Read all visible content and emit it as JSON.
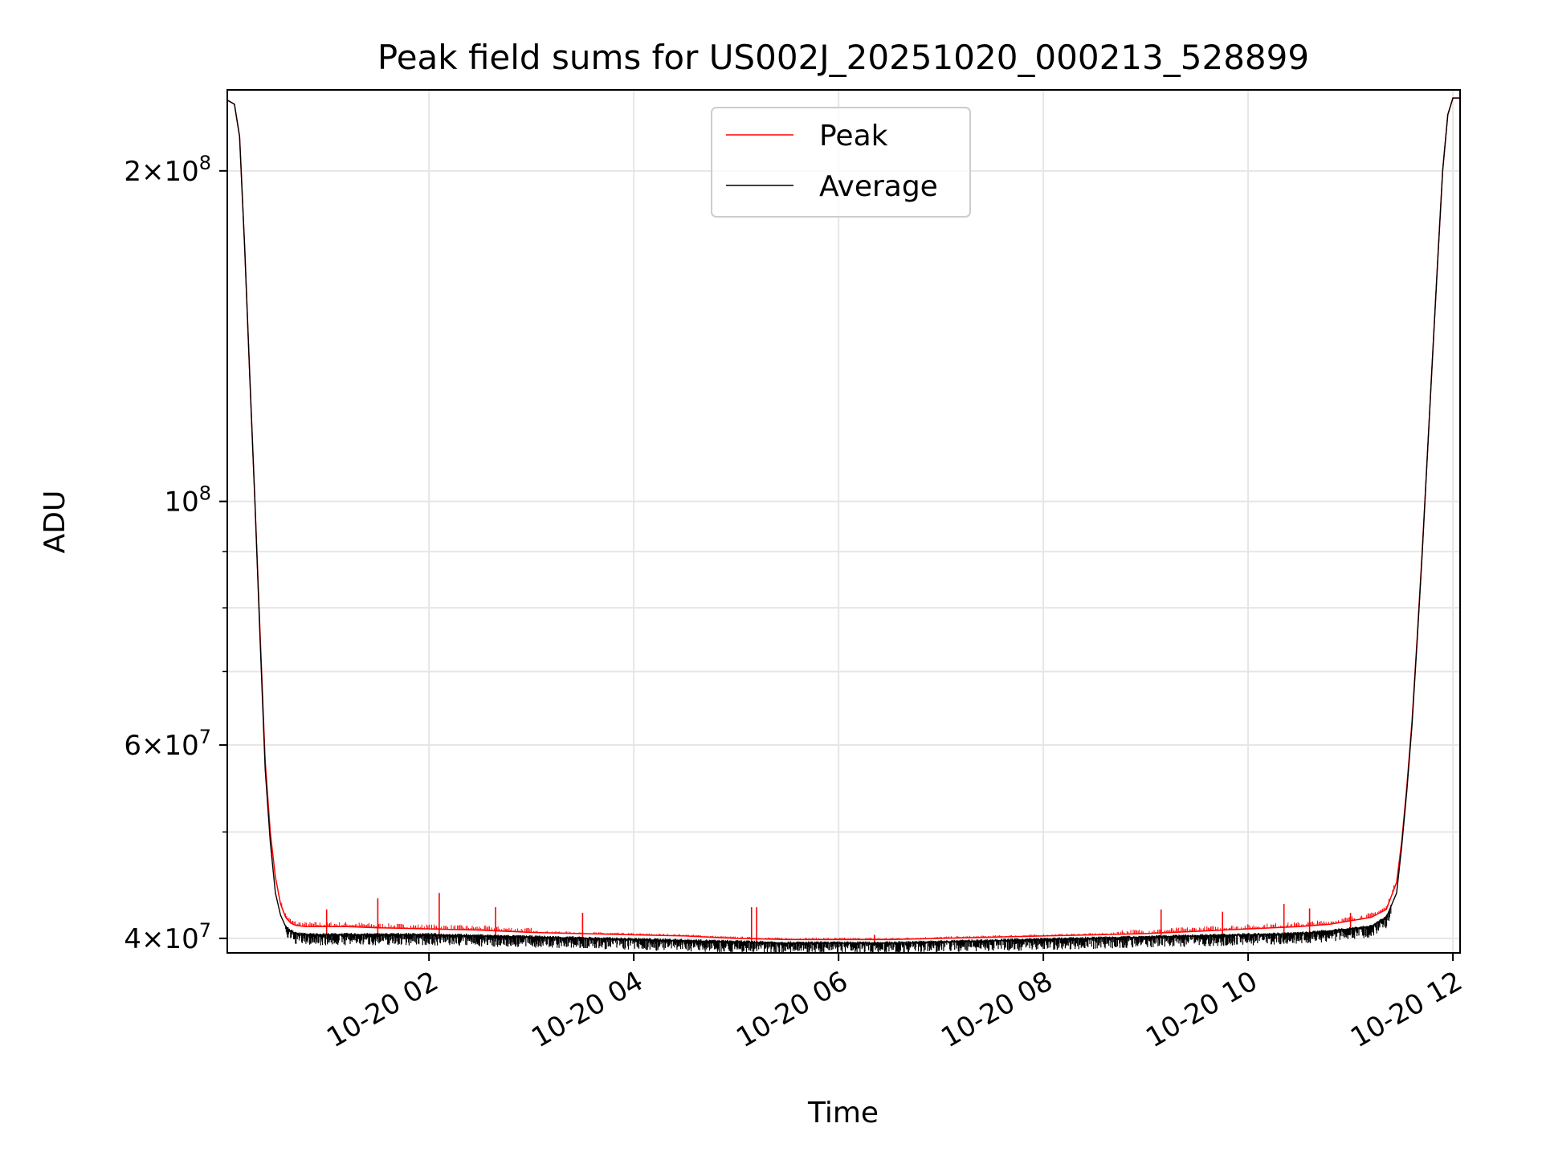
{
  "chart_data": {
    "type": "line",
    "title": "Peak field sums for US002J_20251020_000213_528899",
    "xlabel": "Time",
    "ylabel": "ADU",
    "yscale": "log",
    "ylim": [
      38800000,
      237000000
    ],
    "xlim_hours": [
      0.03,
      12.07
    ],
    "grid": true,
    "legend_position": "upper center",
    "x_ticks": [
      {
        "hour": 2,
        "label": "10-20 02"
      },
      {
        "hour": 4,
        "label": "10-20 04"
      },
      {
        "hour": 6,
        "label": "10-20 06"
      },
      {
        "hour": 8,
        "label": "10-20 08"
      },
      {
        "hour": 10,
        "label": "10-20 10"
      },
      {
        "hour": 12,
        "label": "10-20 12"
      }
    ],
    "y_major_ticks": [
      {
        "value": 40000000,
        "base": "4",
        "exp": "7"
      },
      {
        "value": 60000000,
        "base": "6",
        "exp": "7"
      },
      {
        "value": 100000000,
        "base": "",
        "exp": "8"
      },
      {
        "value": 200000000,
        "base": "2",
        "exp": "8"
      }
    ],
    "y_minor_ticks": [
      50000000,
      70000000,
      80000000,
      90000000
    ],
    "series": [
      {
        "name": "Peak",
        "color": "#ff0000",
        "x_hours": [
          0.03,
          0.1,
          0.15,
          0.2,
          0.25,
          0.3,
          0.35,
          0.4,
          0.45,
          0.5,
          0.55,
          0.6,
          0.65,
          0.7,
          0.8,
          0.9,
          1.0,
          1.2,
          1.5,
          2.0,
          2.5,
          3.0,
          3.5,
          4.0,
          4.5,
          5.0,
          5.5,
          6.0,
          6.5,
          7.0,
          7.5,
          8.0,
          8.5,
          9.0,
          9.5,
          10.0,
          10.5,
          10.8,
          11.0,
          11.2,
          11.35,
          11.45,
          11.5,
          11.55,
          11.6,
          11.65,
          11.7,
          11.75,
          11.8,
          11.85,
          11.9,
          11.95,
          12.0,
          12.07
        ],
        "values": [
          232000000,
          230000000,
          215000000,
          170000000,
          130000000,
          100000000,
          76000000,
          58000000,
          50000000,
          45500000,
          43000000,
          41800000,
          41300000,
          41100000,
          41000000,
          41000000,
          41000000,
          41000000,
          40900000,
          40800000,
          40700000,
          40500000,
          40400000,
          40300000,
          40200000,
          40000000,
          39900000,
          39900000,
          39900000,
          40000000,
          40100000,
          40200000,
          40300000,
          40400000,
          40600000,
          40800000,
          41000000,
          41200000,
          41500000,
          41800000,
          42500000,
          45000000,
          49000000,
          55000000,
          63000000,
          75000000,
          90000000,
          110000000,
          135000000,
          165000000,
          200000000,
          225000000,
          233000000,
          233000000
        ],
        "spikes": [
          {
            "hour": 1.0,
            "value": 42500000
          },
          {
            "hour": 1.5,
            "value": 43500000
          },
          {
            "hour": 2.1,
            "value": 44000000
          },
          {
            "hour": 2.65,
            "value": 42700000
          },
          {
            "hour": 3.5,
            "value": 42200000
          },
          {
            "hour": 5.15,
            "value": 42700000
          },
          {
            "hour": 5.2,
            "value": 42700000
          },
          {
            "hour": 6.35,
            "value": 40300000
          },
          {
            "hour": 9.15,
            "value": 42500000
          },
          {
            "hour": 9.75,
            "value": 42300000
          },
          {
            "hour": 10.35,
            "value": 43000000
          },
          {
            "hour": 10.6,
            "value": 42600000
          },
          {
            "hour": 11.0,
            "value": 42200000
          }
        ]
      },
      {
        "name": "Average",
        "color": "#000000",
        "x_hours": [
          0.03,
          0.1,
          0.15,
          0.2,
          0.25,
          0.3,
          0.35,
          0.4,
          0.45,
          0.5,
          0.55,
          0.6,
          0.65,
          0.7,
          0.8,
          0.9,
          1.0,
          1.2,
          1.5,
          2.0,
          2.5,
          3.0,
          3.5,
          4.0,
          4.5,
          5.0,
          5.5,
          6.0,
          6.5,
          7.0,
          7.5,
          8.0,
          8.5,
          9.0,
          9.5,
          10.0,
          10.5,
          10.8,
          11.0,
          11.2,
          11.35,
          11.45,
          11.5,
          11.55,
          11.6,
          11.65,
          11.7,
          11.75,
          11.8,
          11.85,
          11.9,
          11.95,
          12.0,
          12.07
        ],
        "values": [
          232000000,
          230000000,
          215000000,
          170000000,
          130000000,
          100000000,
          75000000,
          57000000,
          49000000,
          44000000,
          42000000,
          41000000,
          40600000,
          40400000,
          40300000,
          40300000,
          40300000,
          40300000,
          40300000,
          40300000,
          40200000,
          40100000,
          40000000,
          39900000,
          39800000,
          39700000,
          39600000,
          39600000,
          39600000,
          39700000,
          39800000,
          39900000,
          40000000,
          40100000,
          40200000,
          40300000,
          40400000,
          40600000,
          40800000,
          41000000,
          41800000,
          44000000,
          48500000,
          54500000,
          62500000,
          74500000,
          89500000,
          110000000,
          135000000,
          165000000,
          200000000,
          225000000,
          233000000,
          233000000
        ]
      }
    ]
  }
}
